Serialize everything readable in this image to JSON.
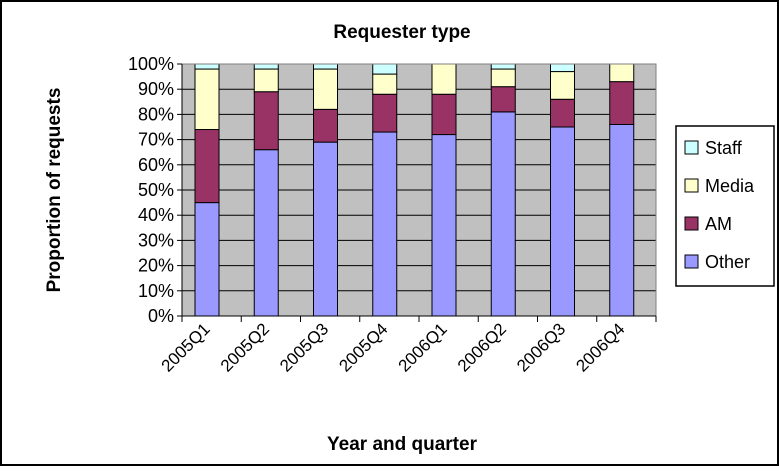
{
  "chart_data": {
    "type": "bar",
    "stacked": true,
    "percent": true,
    "title": "Requester type",
    "xlabel": "Year and quarter",
    "ylabel": "Proportion of requests",
    "categories": [
      "2005Q1",
      "2005Q2",
      "2005Q3",
      "2005Q4",
      "2006Q1",
      "2006Q2",
      "2006Q3",
      "2006Q4"
    ],
    "ylim": [
      0,
      100
    ],
    "yticks": [
      "0%",
      "10%",
      "20%",
      "30%",
      "40%",
      "50%",
      "60%",
      "70%",
      "80%",
      "90%",
      "100%"
    ],
    "grid": true,
    "plot_background": "#c0c0c0",
    "legend_position": "right",
    "series": [
      {
        "name": "Other",
        "color": "#9999ff",
        "values": [
          45,
          66,
          69,
          73,
          72,
          81,
          75,
          76
        ]
      },
      {
        "name": "AM",
        "color": "#993366",
        "values": [
          29,
          23,
          13,
          15,
          16,
          10,
          11,
          17
        ]
      },
      {
        "name": "Media",
        "color": "#ffffcc",
        "values": [
          24,
          9,
          16,
          8,
          12,
          7,
          11,
          7
        ]
      },
      {
        "name": "Staff",
        "color": "#ccffff",
        "values": [
          2,
          2,
          2,
          4,
          0,
          2,
          3,
          0
        ]
      }
    ]
  }
}
